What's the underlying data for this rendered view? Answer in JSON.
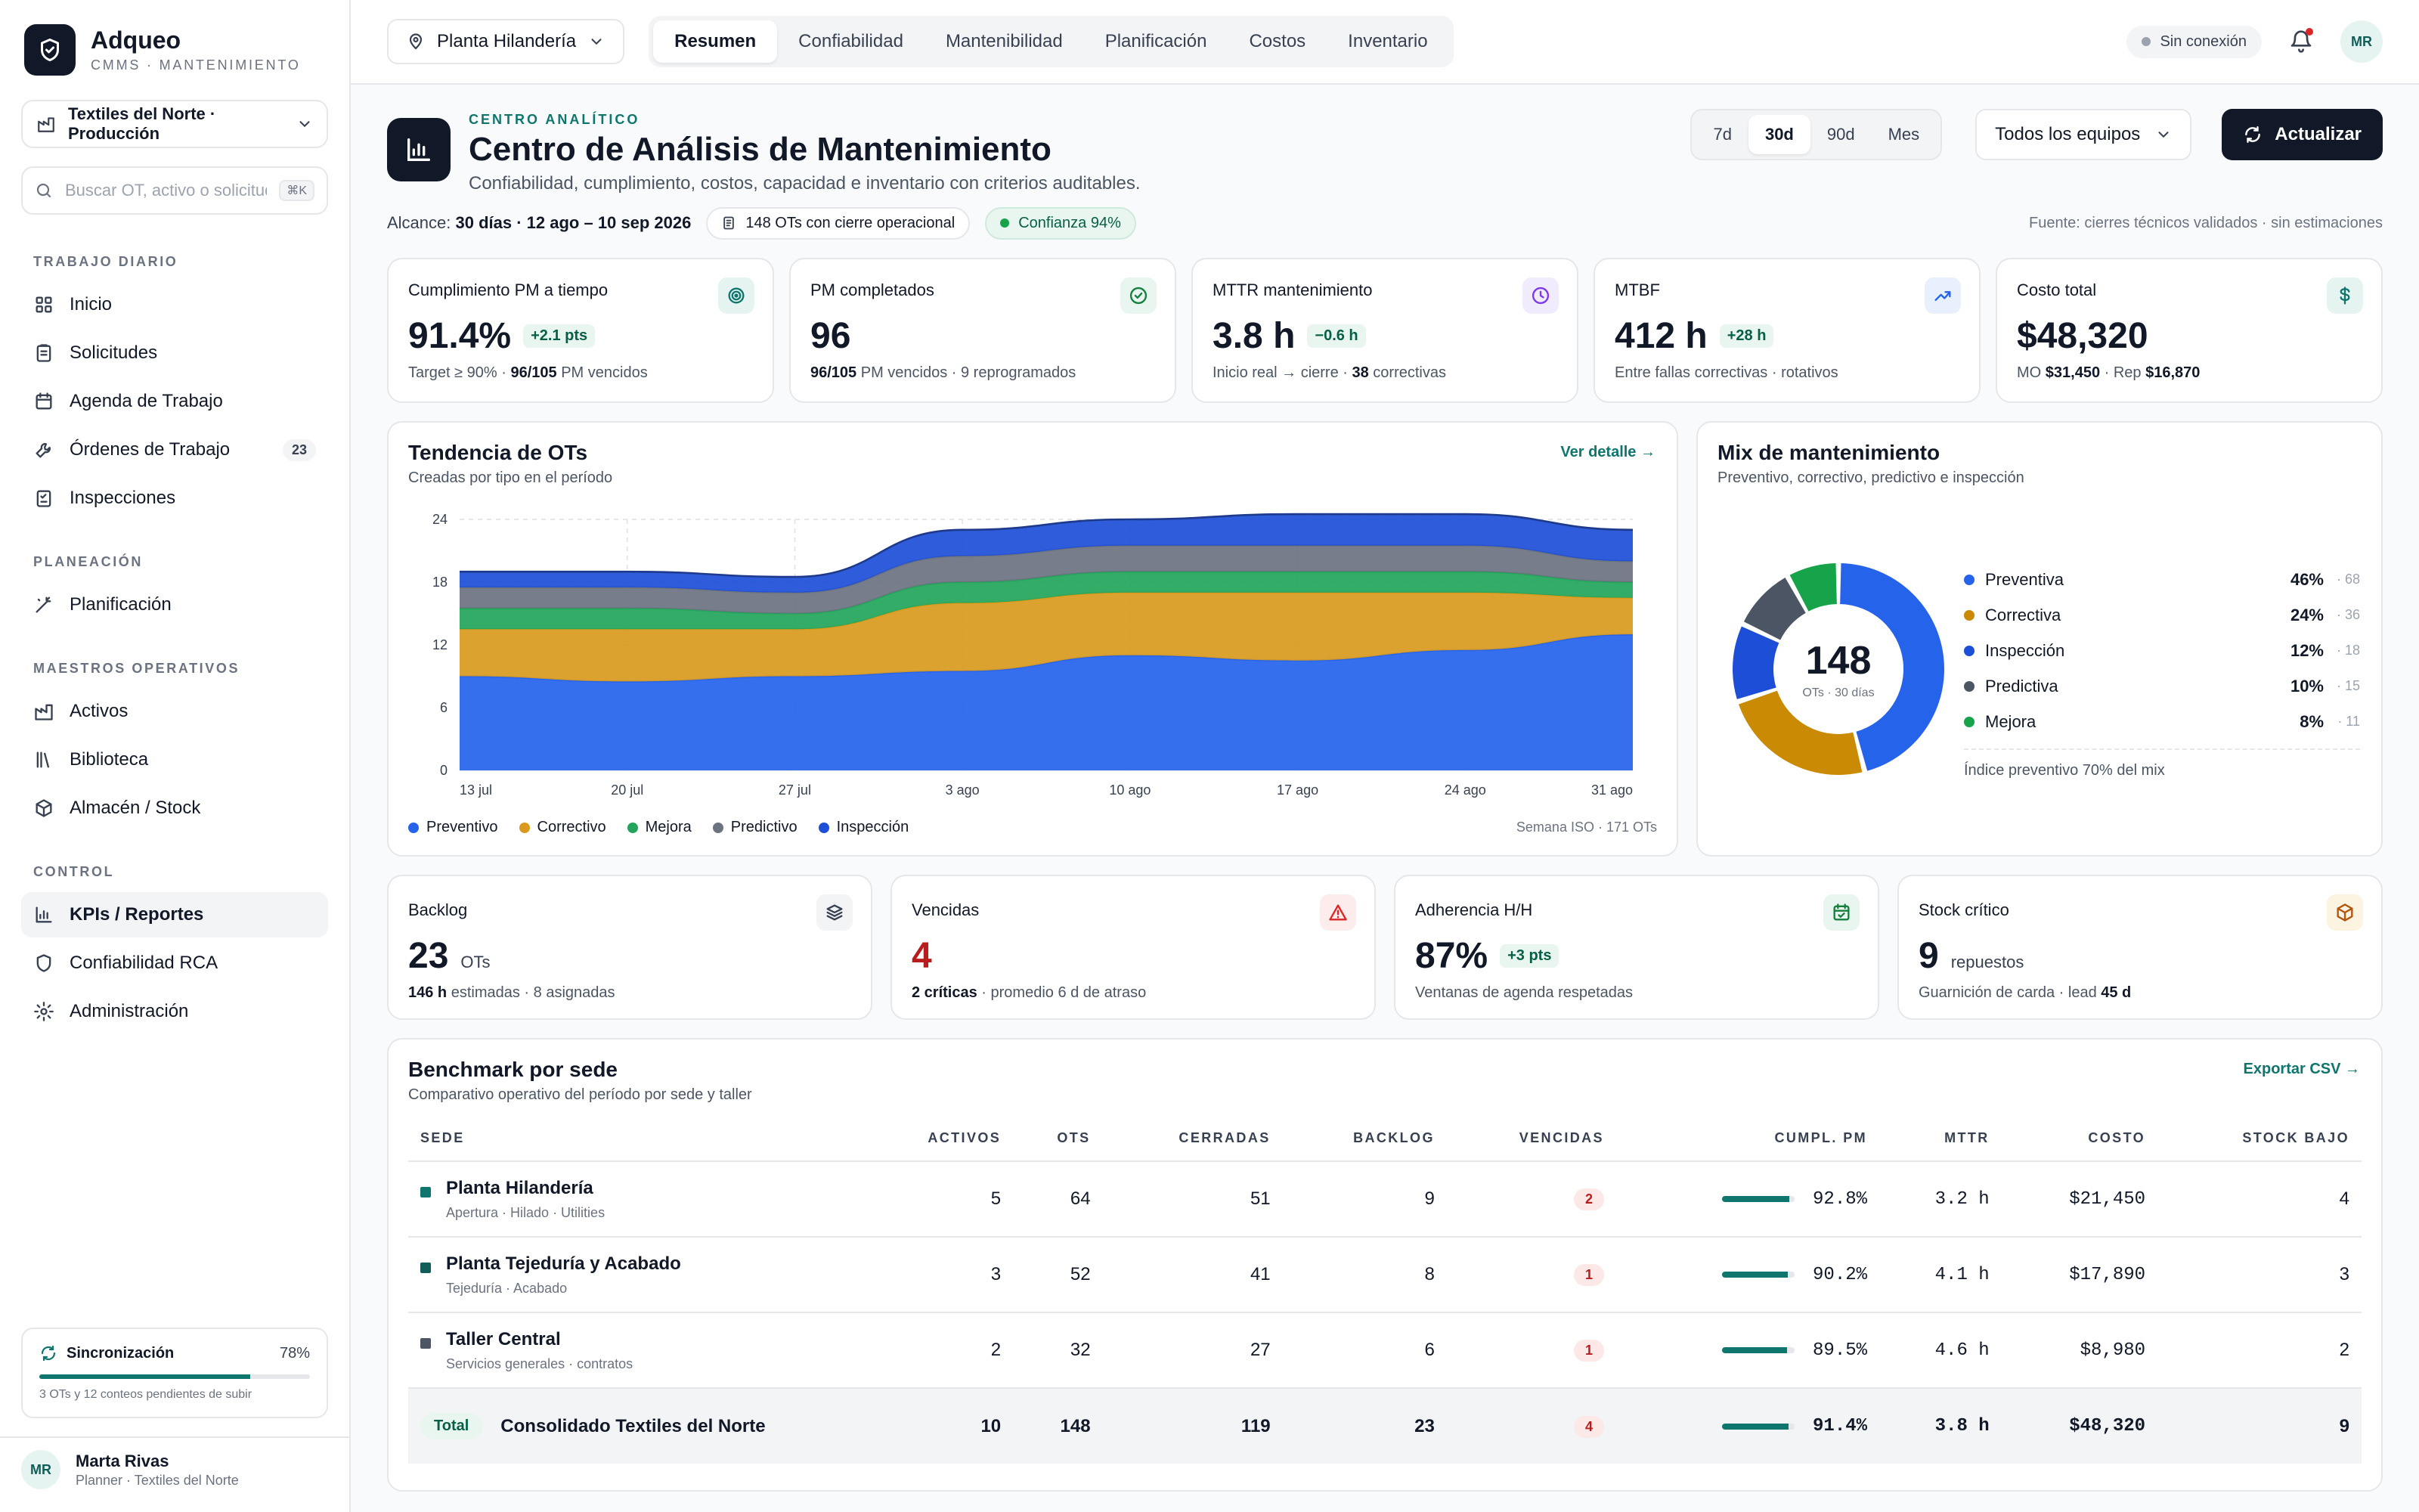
{
  "brand": {
    "name": "Adqueo",
    "subtitle": "CMMS · MANTENIMIENTO"
  },
  "workspace": {
    "label": "Textiles del Norte · Producción"
  },
  "search": {
    "placeholder": "Buscar OT, activo o solicitud",
    "shortcut": "⌘K"
  },
  "nav": {
    "sections": [
      {
        "title": "TRABAJO DIARIO",
        "items": [
          {
            "label": "Inicio",
            "icon": "grid-icon"
          },
          {
            "label": "Solicitudes",
            "icon": "clipboard-icon"
          },
          {
            "label": "Agenda de Trabajo",
            "icon": "calendar-icon"
          },
          {
            "label": "Órdenes de Trabajo",
            "icon": "wrench-icon",
            "badge": "23"
          },
          {
            "label": "Inspecciones",
            "icon": "checklist-icon"
          }
        ]
      },
      {
        "title": "PLANEACIÓN",
        "items": [
          {
            "label": "Planificación",
            "icon": "wand-icon"
          }
        ]
      },
      {
        "title": "MAESTROS OPERATIVOS",
        "items": [
          {
            "label": "Activos",
            "icon": "factory-icon"
          },
          {
            "label": "Biblioteca",
            "icon": "library-icon"
          },
          {
            "label": "Almacén / Stock",
            "icon": "box-icon"
          }
        ]
      },
      {
        "title": "CONTROL",
        "items": [
          {
            "label": "KPIs / Reportes",
            "icon": "bar-chart-icon",
            "active": true
          },
          {
            "label": "Confiabilidad RCA",
            "icon": "shield-icon"
          },
          {
            "label": "Administración",
            "icon": "gear-icon"
          }
        ]
      }
    ]
  },
  "sync": {
    "title": "Sincronización",
    "pct_label": "78%",
    "pct": 78,
    "note": "3 OTs y 12 conteos pendientes de subir"
  },
  "user": {
    "initials": "MR",
    "name": "Marta Rivas",
    "role": "Planner · Textiles del Norte"
  },
  "topbar": {
    "plant": "Planta Hilandería",
    "tabs": [
      "Resumen",
      "Confiabilidad",
      "Mantenibilidad",
      "Planificación",
      "Costos",
      "Inventario"
    ],
    "active_tab": 0,
    "connection": "Sin conexión",
    "avatar": "MR"
  },
  "header": {
    "eyebrow": "CENTRO ANALÍTICO",
    "title": "Centro de Análisis de Mantenimiento",
    "subtitle": "Confiabilidad, cumplimiento, costos, capacidad e inventario con criterios auditables.",
    "ranges": [
      "7d",
      "30d",
      "90d",
      "Mes"
    ],
    "active_range": 1,
    "equipment": "Todos los equipos",
    "refresh": "Actualizar"
  },
  "scope": {
    "label": "Alcance:",
    "value": "30 días · 12 ago – 10 sep 2026",
    "chip_ots": "148 OTs con cierre operacional",
    "chip_conf": "Confianza 94%",
    "source": "Fuente: cierres técnicos validados · sin estimaciones"
  },
  "kpis": [
    {
      "label": "Cumplimiento PM a tiempo",
      "value": "91.4%",
      "delta": "+2.1 pts",
      "note_a": "Target ≥ 90% · ",
      "note_b": "96/105",
      "note_c": " PM vencidos",
      "icon": "target-icon",
      "icon_bg": "#e6f4f1",
      "icon_color": "#0f766e"
    },
    {
      "label": "PM completados",
      "value": "96",
      "delta": "",
      "note_a": "",
      "note_b": "96/105",
      "note_c": " PM vencidos · 9 reprogramados",
      "icon": "check-circle-icon",
      "icon_bg": "#e8f6ef",
      "icon_color": "#15803d"
    },
    {
      "label": "MTTR mantenimiento",
      "value": "3.8 h",
      "delta": "−0.6 h",
      "note_a": "Inicio real → cierre · ",
      "note_b": "38",
      "note_c": " correctivas",
      "icon": "clock-icon",
      "icon_bg": "#f1ecfd",
      "icon_color": "#7c3aed"
    },
    {
      "label": "MTBF",
      "value": "412 h",
      "delta": "+28 h",
      "note_a": "Entre fallas correctivas · rotativos",
      "note_b": "",
      "note_c": "",
      "icon": "trending-up-icon",
      "icon_bg": "#e8effd",
      "icon_color": "#2563eb"
    },
    {
      "label": "Costo total",
      "value": "$48,320",
      "delta": "",
      "note_a": "MO ",
      "note_b": "$31,450",
      "note_c": " · Rep ",
      "note_d": "$16,870",
      "icon": "dollar-icon",
      "icon_bg": "#e6f4f1",
      "icon_color": "#0f766e"
    }
  ],
  "trend": {
    "title": "Tendencia de OTs",
    "subtitle": "Creadas por tipo en el período",
    "link": "Ver detalle →",
    "legend_note": "Semana ISO · 171 OTs"
  },
  "chart_data": {
    "type": "area",
    "stacked": true,
    "x": [
      "13 jul",
      "20 jul",
      "27 jul",
      "3 ago",
      "10 ago",
      "17 ago",
      "24 ago",
      "31 ago"
    ],
    "ylim": [
      0,
      24
    ],
    "yticks": [
      0,
      6,
      12,
      18,
      24
    ],
    "grid": true,
    "legend_position": "bottom-left",
    "series": [
      {
        "name": "Preventivo",
        "color": "#2563eb",
        "values": [
          9,
          8.5,
          9,
          9.5,
          11,
          10.5,
          11.5,
          13
        ]
      },
      {
        "name": "Correctivo",
        "color": "#d99a1e",
        "values": [
          4.5,
          5,
          4.5,
          6.5,
          6,
          6.5,
          5.5,
          3.5
        ]
      },
      {
        "name": "Mejora",
        "color": "#22a55b",
        "values": [
          2,
          2,
          1.5,
          2,
          2,
          2,
          2,
          1.5
        ]
      },
      {
        "name": "Predictivo",
        "color": "#6b7280",
        "values": [
          2,
          2,
          2,
          2.5,
          2.5,
          2.5,
          2.5,
          2
        ]
      },
      {
        "name": "Inspección",
        "color": "#1d4ed8",
        "values": [
          1.5,
          1.5,
          1.5,
          2.5,
          2.5,
          3,
          3,
          3
        ]
      }
    ]
  },
  "mix": {
    "title": "Mix de mantenimiento",
    "subtitle": "Preventivo, correctivo, predictivo e inspección",
    "total": "148",
    "total_label": "OTs · 30 días",
    "footer": "Índice preventivo 70% del mix",
    "items": [
      {
        "name": "Preventiva",
        "pct_label": "46%",
        "pct": 46,
        "count": "· 68",
        "color": "#2563eb"
      },
      {
        "name": "Correctiva",
        "pct_label": "24%",
        "pct": 24,
        "count": "· 36",
        "color": "#ca8a04"
      },
      {
        "name": "Inspección",
        "pct_label": "12%",
        "pct": 12,
        "count": "· 18",
        "color": "#1d4ed8"
      },
      {
        "name": "Predictiva",
        "pct_label": "10%",
        "pct": 10,
        "count": "· 15",
        "color": "#4b5563"
      },
      {
        "name": "Mejora",
        "pct_label": "8%",
        "pct": 8,
        "count": "· 11",
        "color": "#16a34a"
      }
    ]
  },
  "stats": [
    {
      "label": "Backlog",
      "value": "23",
      "unit": "OTs",
      "note_b": "146 h",
      "note_c": " estimadas · 8 asignadas",
      "icon": "layers-icon",
      "icon_bg": "#f3f4f6",
      "icon_color": "#374151",
      "value_color": "#111827"
    },
    {
      "label": "Vencidas",
      "value": "4",
      "unit": "",
      "note_b": "2 críticas",
      "note_c": " · promedio 6 d de atraso",
      "icon": "alert-triangle-icon",
      "icon_bg": "#fdecec",
      "icon_color": "#dc2626",
      "value_color": "#b91c1c"
    },
    {
      "label": "Adherencia H/H",
      "value": "87%",
      "unit": "",
      "delta": "+3 pts",
      "note_b": "",
      "note_c": "Ventanas de agenda respetadas",
      "icon": "calendar-check-icon",
      "icon_bg": "#e8f6ef",
      "icon_color": "#15803d",
      "value_color": "#111827"
    },
    {
      "label": "Stock crítico",
      "value": "9",
      "unit": "repuestos",
      "note_b": "",
      "note_c": "Guarnición de carda · lead ",
      "note_d": "45 d",
      "icon": "package-icon",
      "icon_bg": "#fdf3e1",
      "icon_color": "#b45309",
      "value_color": "#111827"
    }
  ],
  "benchmark": {
    "title": "Benchmark por sede",
    "subtitle": "Comparativo operativo del período por sede y taller",
    "link": "Exportar CSV →",
    "columns": [
      "SEDE",
      "ACTIVOS",
      "OTS",
      "CERRADAS",
      "BACKLOG",
      "VENCIDAS",
      "CUMPL. PM",
      "MTTR",
      "COSTO",
      "STOCK BAJO"
    ],
    "rows": [
      {
        "name": "Planta Hilandería",
        "sub": "Apertura · Hilado · Utilities",
        "color": "#0f766e",
        "activos": "5",
        "ots": "64",
        "cerradas": "51",
        "backlog": "9",
        "vencidas": "2",
        "pm_label": "92.8%",
        "pm": 92.8,
        "mttr": "3.2 h",
        "costo": "$21,450",
        "stock": "4"
      },
      {
        "name": "Planta Tejeduría y Acabado",
        "sub": "Tejeduría · Acabado",
        "color": "#115e59",
        "activos": "3",
        "ots": "52",
        "cerradas": "41",
        "backlog": "8",
        "vencidas": "1",
        "pm_label": "90.2%",
        "pm": 90.2,
        "mttr": "4.1 h",
        "costo": "$17,890",
        "stock": "3"
      },
      {
        "name": "Taller Central",
        "sub": "Servicios generales · contratos",
        "color": "#4b5563",
        "activos": "2",
        "ots": "32",
        "cerradas": "27",
        "backlog": "6",
        "vencidas": "1",
        "pm_label": "89.5%",
        "pm": 89.5,
        "mttr": "4.6 h",
        "costo": "$8,980",
        "stock": "2"
      }
    ],
    "total": {
      "tag": "Total",
      "name": "Consolidado Textiles del Norte",
      "activos": "10",
      "ots": "148",
      "cerradas": "119",
      "backlog": "23",
      "vencidas": "4",
      "pm_label": "91.4%",
      "pm": 91.4,
      "mttr": "3.8 h",
      "costo": "$48,320",
      "stock": "9"
    }
  }
}
